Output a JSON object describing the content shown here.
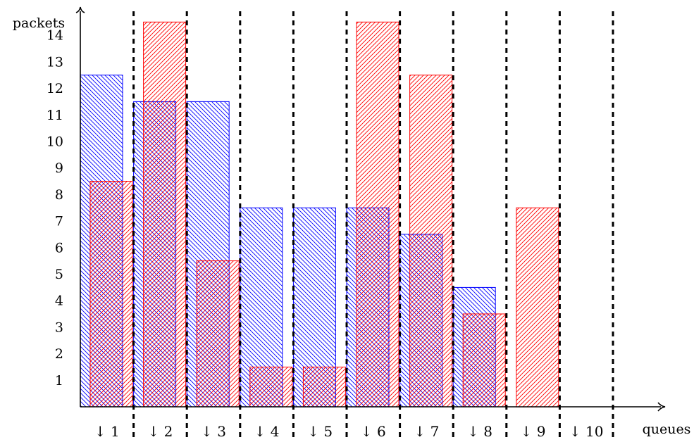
{
  "chart_data": {
    "type": "bar",
    "title": "",
    "ylabel": "packets",
    "xlabel": "queues",
    "ylim": [
      0,
      15
    ],
    "yticks": [
      1,
      2,
      3,
      4,
      5,
      6,
      7,
      8,
      9,
      10,
      11,
      12,
      13,
      14
    ],
    "categories": [
      "↓ 1",
      "↓ 2",
      "↓ 3",
      "↓ 4",
      "↓ 5",
      "↓ 6",
      "↓ 7",
      "↓ 8",
      "↓ 9",
      "↓ 10"
    ],
    "series": [
      {
        "color": "#0000ff",
        "hatch": "north-west lines",
        "values": [
          12.5,
          11.5,
          11.5,
          7.5,
          7.5,
          7.5,
          6.5,
          4.5,
          0,
          0
        ]
      },
      {
        "color": "#ff0000",
        "hatch": "north-east lines",
        "values": [
          8.5,
          14.5,
          5.5,
          1.5,
          1.5,
          14.5,
          12.5,
          3.5,
          7.5,
          0
        ]
      }
    ],
    "grid": false,
    "queue_separators": "dashed vertical lines"
  }
}
